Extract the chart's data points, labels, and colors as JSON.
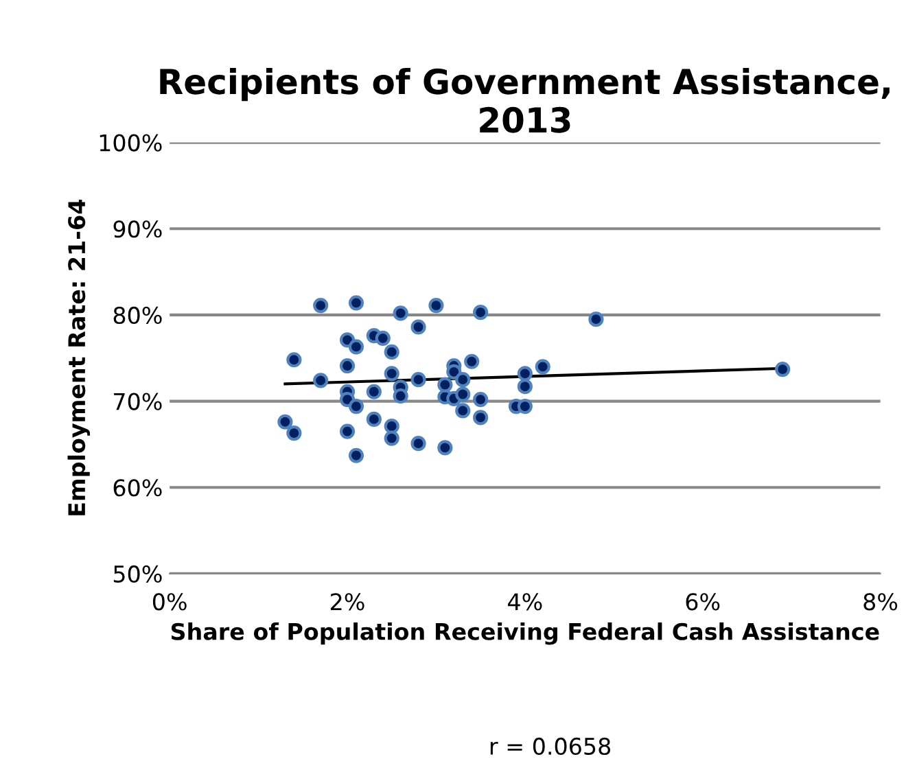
{
  "chart_data": {
    "type": "scatter",
    "title": "Recipients of Government Assistance, 2013",
    "xlabel": "Share of Population Receiving Federal Cash Assistance",
    "ylabel": "Employment Rate: 21-64",
    "annotations": [
      "r = 0.0658"
    ],
    "xlim": [
      0,
      8
    ],
    "ylim": [
      50,
      100
    ],
    "xticks": [
      {
        "value": 0,
        "label": "0%"
      },
      {
        "value": 2,
        "label": "2%"
      },
      {
        "value": 4,
        "label": "4%"
      },
      {
        "value": 6,
        "label": "6%"
      },
      {
        "value": 8,
        "label": "8%"
      }
    ],
    "yticks": [
      {
        "value": 50,
        "label": "50%"
      },
      {
        "value": 60,
        "label": "60%"
      },
      {
        "value": 70,
        "label": "70%"
      },
      {
        "value": 80,
        "label": "80%"
      },
      {
        "value": 90,
        "label": "90%"
      },
      {
        "value": 100,
        "label": "100%"
      }
    ],
    "grid": "y",
    "legend": false,
    "series": [
      {
        "color": "#002060",
        "marker": "circle",
        "x": [
          1.3,
          1.4,
          1.4,
          1.7,
          1.7,
          2.1,
          2.0,
          2.0,
          2.1,
          2.0,
          2.0,
          2.1,
          2.0,
          2.1,
          2.3,
          2.4,
          2.5,
          2.3,
          2.3,
          2.5,
          2.6,
          2.6,
          2.5,
          2.5,
          2.6,
          2.8,
          2.8,
          2.8,
          3.0,
          3.1,
          3.1,
          3.1,
          3.2,
          3.2,
          3.2,
          3.3,
          3.3,
          3.3,
          3.4,
          3.5,
          3.5,
          3.5,
          3.9,
          4.0,
          4.0,
          4.0,
          4.2,
          4.8,
          6.9
        ],
        "values": [
          67.6,
          66.3,
          74.8,
          81.1,
          72.4,
          81.4,
          77.1,
          74.1,
          76.3,
          71.1,
          70.2,
          69.4,
          66.5,
          63.7,
          77.6,
          77.3,
          75.7,
          71.1,
          67.9,
          73.2,
          71.6,
          70.6,
          67.1,
          65.7,
          80.2,
          78.6,
          72.5,
          65.1,
          81.1,
          70.5,
          71.9,
          64.6,
          74.1,
          70.3,
          73.4,
          72.5,
          70.8,
          68.9,
          74.6,
          80.3,
          70.2,
          68.1,
          69.4,
          69.4,
          73.2,
          71.7,
          74.0,
          79.5,
          73.7
        ]
      },
      {
        "type": "line",
        "marker": "none",
        "color": "#000000",
        "x": [
          1.3,
          6.9
        ],
        "values": [
          72.0,
          73.8
        ]
      }
    ]
  }
}
